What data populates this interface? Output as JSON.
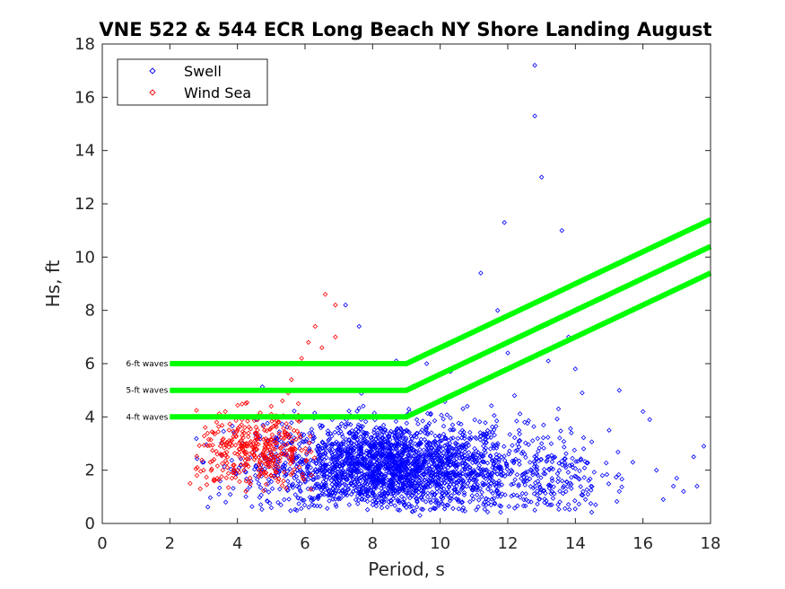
{
  "chart_data": {
    "type": "scatter",
    "title": "VNE 522 & 544 ECR Long Beach NY Shore Landing August",
    "xlabel": "Period, s",
    "ylabel": "Hs, ft",
    "xlim": [
      0,
      18
    ],
    "ylim": [
      0,
      18
    ],
    "xticks": [
      "0",
      "2",
      "4",
      "6",
      "8",
      "10",
      "12",
      "14",
      "16",
      "18"
    ],
    "yticks": [
      "0",
      "2",
      "4",
      "6",
      "8",
      "10",
      "12",
      "14",
      "16",
      "18"
    ],
    "grid": false,
    "legend_position": "top-left",
    "series": [
      {
        "name": "Swell",
        "color": "#0000ff",
        "marker": "diamond",
        "points": [
          [
            12.8,
            17.2
          ],
          [
            12.8,
            15.3
          ],
          [
            13.0,
            13.0
          ],
          [
            13.6,
            11.0
          ],
          [
            11.9,
            11.3
          ],
          [
            11.2,
            9.4
          ],
          [
            11.7,
            8.0
          ],
          [
            7.2,
            8.2
          ],
          [
            7.6,
            7.4
          ],
          [
            8.7,
            6.1
          ],
          [
            9.6,
            6.0
          ],
          [
            10.3,
            5.7
          ],
          [
            12.0,
            6.4
          ],
          [
            13.2,
            6.1
          ],
          [
            14.0,
            5.8
          ],
          [
            13.8,
            7.0
          ],
          [
            15.3,
            5.0
          ],
          [
            16.0,
            4.2
          ],
          [
            16.2,
            3.9
          ],
          [
            17.5,
            2.5
          ],
          [
            17.8,
            2.9
          ],
          [
            17.6,
            1.4
          ],
          [
            17.2,
            1.2
          ],
          [
            16.6,
            0.9
          ],
          [
            16.9,
            1.4
          ],
          [
            15.3,
            1.2
          ],
          [
            14.6,
            0.7
          ],
          [
            14.3,
            0.9
          ],
          [
            13.3,
            0.7
          ],
          [
            12.8,
            0.5
          ],
          [
            9.4,
            0.3
          ],
          [
            8.8,
            0.5
          ],
          [
            9.0,
            0.6
          ],
          [
            10.5,
            0.9
          ],
          [
            11.5,
            1.5
          ],
          [
            12.5,
            2.6
          ],
          [
            13.0,
            3.0
          ],
          [
            13.9,
            2.2
          ],
          [
            14.8,
            1.8
          ],
          [
            15.7,
            2.3
          ],
          [
            16.4,
            2.0
          ],
          [
            17.0,
            1.7
          ],
          [
            14.2,
            4.9
          ],
          [
            15.0,
            3.5
          ],
          [
            13.5,
            4.3
          ],
          [
            12.2,
            4.8
          ],
          [
            11.0,
            5.2
          ],
          [
            10.8,
            4.4
          ],
          [
            12.5,
            3.8
          ],
          [
            11.3,
            3.3
          ]
        ]
      },
      {
        "name": "Wind Sea",
        "color": "#ff0000",
        "marker": "diamond",
        "points": [
          [
            6.6,
            8.6
          ],
          [
            6.9,
            8.2
          ],
          [
            6.3,
            7.4
          ],
          [
            6.9,
            7.0
          ],
          [
            6.1,
            6.8
          ],
          [
            6.5,
            6.6
          ],
          [
            5.9,
            6.2
          ],
          [
            5.6,
            5.4
          ],
          [
            5.5,
            4.9
          ],
          [
            5.0,
            4.4
          ],
          [
            4.6,
            3.9
          ],
          [
            4.2,
            3.4
          ],
          [
            3.8,
            3.0
          ],
          [
            3.5,
            2.6
          ],
          [
            3.2,
            2.3
          ],
          [
            3.0,
            2.0
          ],
          [
            2.8,
            1.8
          ],
          [
            2.6,
            1.5
          ],
          [
            2.9,
            1.3
          ],
          [
            3.3,
            1.6
          ],
          [
            3.7,
            2.1
          ],
          [
            4.0,
            2.6
          ],
          [
            4.3,
            2.9
          ],
          [
            4.8,
            3.5
          ],
          [
            5.2,
            3.8
          ],
          [
            5.8,
            4.5
          ],
          [
            6.3,
            5.0
          ],
          [
            4.5,
            2.4
          ],
          [
            3.9,
            1.9
          ],
          [
            4.9,
            3.1
          ]
        ]
      }
    ],
    "density_clouds": [
      {
        "series": "Swell",
        "count": 2200,
        "center": [
          8.5,
          2.1
        ],
        "spread": [
          1.9,
          0.85
        ],
        "x_range": [
          2.2,
          11.8
        ],
        "y_range": [
          0.4,
          5.2
        ]
      },
      {
        "series": "Swell",
        "count": 300,
        "center": [
          12.8,
          1.9
        ],
        "spread": [
          1.0,
          0.9
        ],
        "x_range": [
          11.0,
          15.5
        ],
        "y_range": [
          0.4,
          5.0
        ]
      },
      {
        "series": "Wind Sea",
        "count": 350,
        "center": [
          4.6,
          2.7
        ],
        "spread": [
          0.9,
          0.7
        ],
        "x_range": [
          2.5,
          6.4
        ],
        "y_range": [
          1.2,
          4.8
        ]
      }
    ],
    "threshold_lines": [
      {
        "label": "6-ft waves",
        "color": "#00ff00",
        "points": [
          [
            2,
            6
          ],
          [
            9,
            6
          ],
          [
            18,
            11.4
          ]
        ]
      },
      {
        "label": "5-ft waves",
        "color": "#00ff00",
        "points": [
          [
            2,
            5
          ],
          [
            9,
            5
          ],
          [
            18,
            10.4
          ]
        ]
      },
      {
        "label": "4-ft waves",
        "color": "#00ff00",
        "points": [
          [
            2,
            4
          ],
          [
            9,
            4
          ],
          [
            18,
            9.4
          ]
        ]
      }
    ]
  }
}
